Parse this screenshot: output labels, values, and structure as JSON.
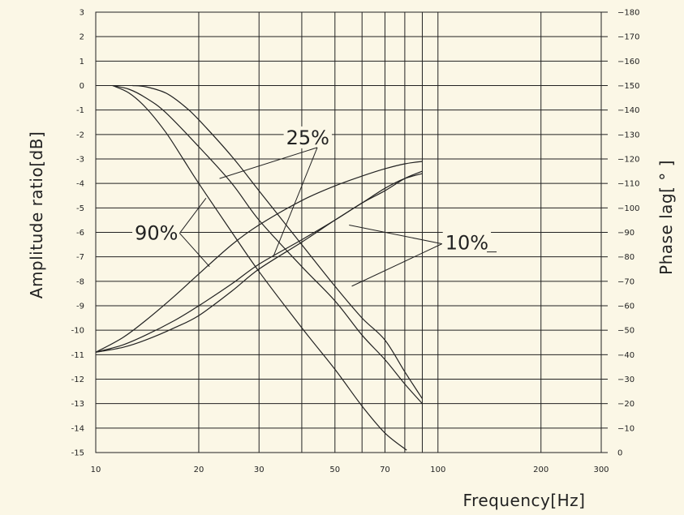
{
  "chart_data": {
    "type": "line",
    "title": "",
    "xlabel": "Frequency[Hz]",
    "ylabel_left": "Amplitude ratio[dB]",
    "ylabel_right": "Phase lag[ ° ]",
    "x_scale": "log",
    "xlim": [
      10,
      300
    ],
    "ylim_left": [
      -15,
      3
    ],
    "ylim_right": [
      0,
      180
    ],
    "grid": true,
    "x_ticks": [
      10,
      20,
      30,
      50,
      70,
      100,
      200,
      300
    ],
    "x_gridlines": [
      10,
      20,
      30,
      40,
      50,
      60,
      70,
      80,
      90,
      100,
      200
    ],
    "y_left_ticks": [
      3,
      2,
      1,
      0,
      -1,
      -2,
      -3,
      -4,
      -5,
      -6,
      -7,
      -8,
      -9,
      -10,
      -11,
      -12,
      -13,
      -14,
      -15
    ],
    "y_right_ticks": [
      180,
      170,
      160,
      150,
      140,
      130,
      120,
      110,
      100,
      90,
      80,
      70,
      60,
      50,
      40,
      30,
      20,
      10,
      0
    ],
    "series": [
      {
        "axis": "left",
        "points": [
          [
            11.2,
            0
          ],
          [
            12.5,
            -0.3
          ],
          [
            14,
            -0.9
          ],
          [
            16,
            -1.9
          ],
          [
            18,
            -3.0
          ],
          [
            20,
            -4.0
          ],
          [
            25,
            -6.0
          ],
          [
            30,
            -7.6
          ],
          [
            40,
            -9.9
          ],
          [
            50,
            -11.6
          ],
          [
            60,
            -13.1
          ],
          [
            70,
            -14.2
          ],
          [
            81,
            -14.9
          ]
        ]
      },
      {
        "axis": "left",
        "points": [
          [
            11.2,
            0
          ],
          [
            12.5,
            -0.15
          ],
          [
            14,
            -0.5
          ],
          [
            16,
            -1.1
          ],
          [
            20,
            -2.5
          ],
          [
            25,
            -4.0
          ],
          [
            30,
            -5.5
          ],
          [
            40,
            -7.4
          ],
          [
            50,
            -8.8
          ],
          [
            60,
            -10.2
          ],
          [
            70,
            -11.2
          ],
          [
            80,
            -12.2
          ],
          [
            90,
            -13.0
          ]
        ]
      },
      {
        "axis": "left",
        "points": [
          [
            12.8,
            0
          ],
          [
            14,
            -0.05
          ],
          [
            16,
            -0.3
          ],
          [
            18,
            -0.8
          ],
          [
            20,
            -1.4
          ],
          [
            25,
            -2.9
          ],
          [
            30,
            -4.3
          ],
          [
            40,
            -6.5
          ],
          [
            50,
            -8.2
          ],
          [
            60,
            -9.5
          ],
          [
            70,
            -10.4
          ],
          [
            80,
            -11.7
          ],
          [
            90,
            -12.8
          ]
        ]
      },
      {
        "axis": "right",
        "points": [
          [
            10,
            41
          ],
          [
            12,
            47
          ],
          [
            14,
            54
          ],
          [
            17,
            64
          ],
          [
            20,
            73
          ],
          [
            25,
            85
          ],
          [
            30,
            93
          ],
          [
            40,
            103
          ],
          [
            50,
            109
          ],
          [
            60,
            113
          ],
          [
            70,
            116
          ],
          [
            80,
            118
          ],
          [
            90,
            119
          ]
        ]
      },
      {
        "axis": "right",
        "points": [
          [
            10,
            41
          ],
          [
            12,
            44
          ],
          [
            14,
            48
          ],
          [
            17,
            54
          ],
          [
            20,
            60
          ],
          [
            25,
            69
          ],
          [
            30,
            77
          ],
          [
            40,
            87
          ],
          [
            50,
            95
          ],
          [
            60,
            102
          ],
          [
            70,
            107
          ],
          [
            80,
            112
          ],
          [
            90,
            115
          ]
        ]
      },
      {
        "axis": "right",
        "points": [
          [
            10,
            41
          ],
          [
            12,
            43
          ],
          [
            14,
            46
          ],
          [
            17,
            51
          ],
          [
            20,
            56
          ],
          [
            25,
            66
          ],
          [
            30,
            75
          ],
          [
            40,
            86
          ],
          [
            50,
            95
          ],
          [
            60,
            102
          ],
          [
            70,
            108
          ],
          [
            80,
            112
          ],
          [
            90,
            114
          ]
        ]
      }
    ],
    "annotations": [
      {
        "text": "25%",
        "at": [
          36,
          -2.4
        ],
        "leaders": [
          [
            23,
            -3.8
          ],
          [
            33,
            -7.0
          ]
        ]
      },
      {
        "text": "90%",
        "at": [
          13,
          -6.3
        ],
        "leaders": [
          [
            21,
            -4.6
          ],
          [
            21.5,
            -7.4
          ]
        ]
      },
      {
        "text": "10%",
        "at": [
          105,
          -6.7
        ],
        "leaders": [
          [
            55,
            -5.7
          ],
          [
            56,
            -8.2
          ]
        ]
      }
    ]
  }
}
